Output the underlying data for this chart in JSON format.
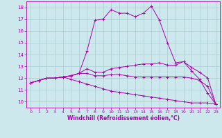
{
  "xlabel": "Windchill (Refroidissement éolien,°C)",
  "ylabel": "",
  "bg_color": "#cce8ec",
  "grid_color": "#aaccd4",
  "line_color": "#aa00aa",
  "xlim": [
    -0.5,
    23.5
  ],
  "ylim": [
    9.5,
    18.5
  ],
  "xticks": [
    0,
    1,
    2,
    3,
    4,
    5,
    6,
    7,
    8,
    9,
    10,
    11,
    12,
    13,
    14,
    15,
    16,
    17,
    18,
    19,
    20,
    21,
    22,
    23
  ],
  "yticks": [
    10,
    11,
    12,
    13,
    14,
    15,
    16,
    17,
    18
  ],
  "x": [
    0,
    1,
    2,
    3,
    4,
    5,
    6,
    7,
    8,
    9,
    10,
    11,
    12,
    13,
    14,
    15,
    16,
    17,
    18,
    19,
    20,
    21,
    22,
    23
  ],
  "line1": [
    11.6,
    11.8,
    12.0,
    12.0,
    12.1,
    12.2,
    12.4,
    14.3,
    16.9,
    17.0,
    17.8,
    17.5,
    17.5,
    17.2,
    17.5,
    18.1,
    16.9,
    15.0,
    13.3,
    13.4,
    12.6,
    11.9,
    10.7,
    9.8
  ],
  "line2": [
    11.6,
    11.8,
    12.0,
    12.0,
    12.1,
    12.2,
    12.4,
    12.8,
    12.5,
    12.5,
    12.8,
    12.9,
    13.0,
    13.1,
    13.2,
    13.2,
    13.3,
    13.1,
    13.1,
    13.4,
    12.9,
    12.5,
    12.0,
    9.8
  ],
  "line3": [
    11.6,
    11.8,
    12.0,
    12.0,
    12.1,
    12.2,
    12.4,
    12.4,
    12.2,
    12.2,
    12.3,
    12.3,
    12.2,
    12.1,
    12.1,
    12.1,
    12.1,
    12.1,
    12.1,
    12.1,
    12.0,
    11.8,
    11.3,
    9.8
  ],
  "line4": [
    11.6,
    11.8,
    12.0,
    12.0,
    12.1,
    11.9,
    11.7,
    11.5,
    11.3,
    11.1,
    10.9,
    10.8,
    10.7,
    10.6,
    10.5,
    10.4,
    10.3,
    10.2,
    10.1,
    10.0,
    9.9,
    9.9,
    9.9,
    9.8
  ]
}
